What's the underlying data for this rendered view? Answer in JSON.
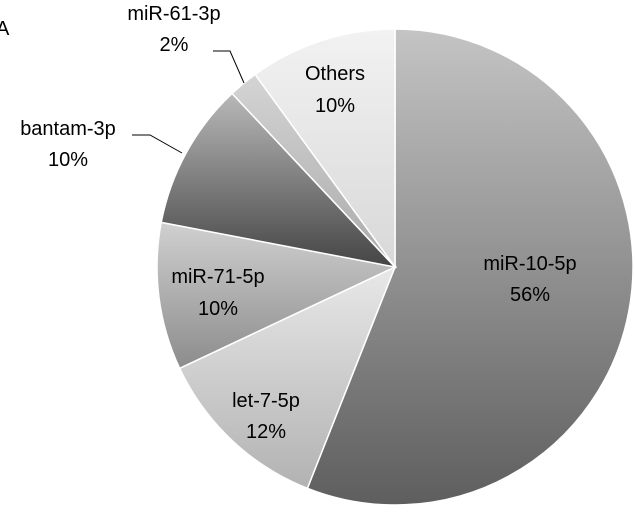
{
  "figure": {
    "panel_label": "A"
  },
  "chart_data": {
    "type": "pie",
    "title": "",
    "slices": [
      {
        "label": "miR-10-5p",
        "percent_label": "56%",
        "value": 56
      },
      {
        "label": "let-7-5p",
        "percent_label": "12%",
        "value": 12
      },
      {
        "label": "miR-71-5p",
        "percent_label": "10%",
        "value": 10
      },
      {
        "label": "bantam-3p",
        "percent_label": "10%",
        "value": 10
      },
      {
        "label": "miR-61-3p",
        "percent_label": "2%",
        "value": 2
      },
      {
        "label": "Others",
        "percent_label": "10%",
        "value": 10
      }
    ],
    "start": "12 o'clock",
    "direction": "clockwise",
    "legend": "none"
  }
}
